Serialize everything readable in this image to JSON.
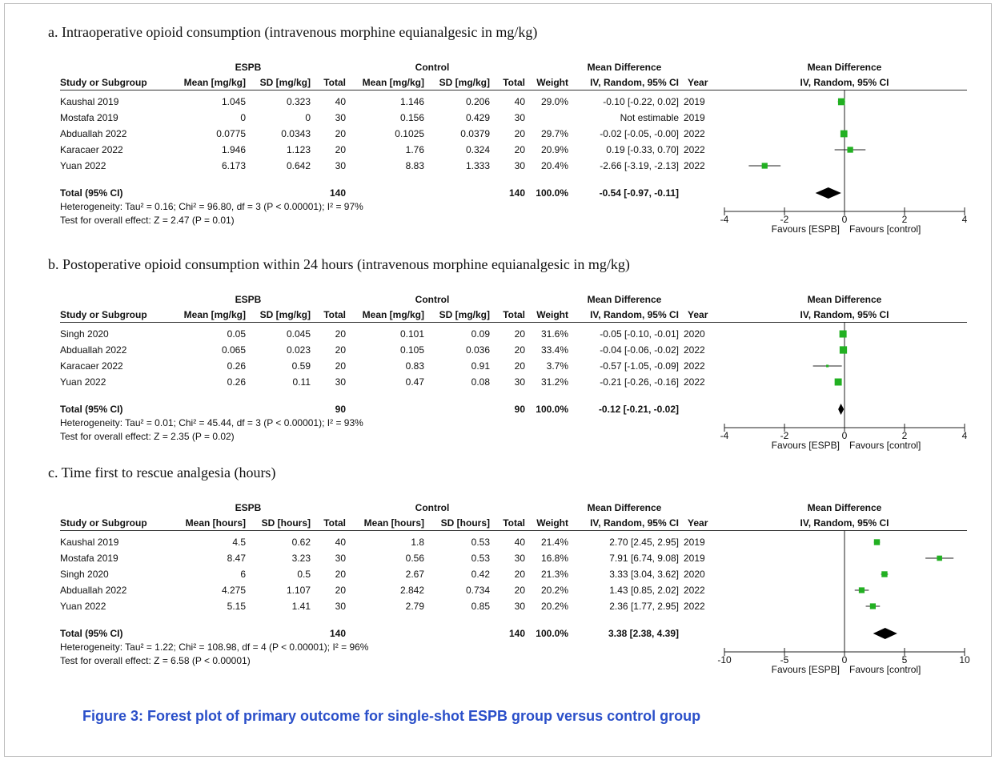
{
  "caption": "Figure 3: Forest plot of primary outcome for single-shot ESPB group versus control group",
  "labels": {
    "espb": "ESPB",
    "control": "Control",
    "md_header": "Mean Difference",
    "method": "IV, Random, 95% CI",
    "study": "Study or Subgroup",
    "total": "Total",
    "weight": "Weight",
    "year": "Year",
    "favours_left": "Favours [ESPB]",
    "favours_right": "Favours [control]"
  },
  "panels": [
    {
      "title": "a. Intraoperative opioid consumption (intravenous morphine equianalgesic in mg/kg)",
      "mean_label": "Mean [mg/kg]",
      "sd_label": "SD [mg/kg]",
      "studies": [
        {
          "study": "Kaushal 2019",
          "e_mean": "1.045",
          "e_sd": "0.323",
          "e_total": "40",
          "c_mean": "1.146",
          "c_sd": "0.206",
          "c_total": "40",
          "weight": "29.0%",
          "ci_text": "-0.10 [-0.22, 0.02]",
          "year": "2019"
        },
        {
          "study": "Mostafa 2019",
          "e_mean": "0",
          "e_sd": "0",
          "e_total": "30",
          "c_mean": "0.156",
          "c_sd": "0.429",
          "c_total": "30",
          "weight": "",
          "ci_text": "Not estimable",
          "year": "2019"
        },
        {
          "study": "Abduallah 2022",
          "e_mean": "0.0775",
          "e_sd": "0.0343",
          "e_total": "20",
          "c_mean": "0.1025",
          "c_sd": "0.0379",
          "c_total": "20",
          "weight": "29.7%",
          "ci_text": "-0.02 [-0.05, -0.00]",
          "year": "2022"
        },
        {
          "study": "Karacaer 2022",
          "e_mean": "1.946",
          "e_sd": "1.123",
          "e_total": "20",
          "c_mean": "1.76",
          "c_sd": "0.324",
          "c_total": "20",
          "weight": "20.9%",
          "ci_text": "0.19 [-0.33, 0.70]",
          "year": "2022"
        },
        {
          "study": "Yuan 2022",
          "e_mean": "6.173",
          "e_sd": "0.642",
          "e_total": "30",
          "c_mean": "8.83",
          "c_sd": "1.333",
          "c_total": "30",
          "weight": "20.4%",
          "ci_text": "-2.66 [-3.19, -2.13]",
          "year": "2022"
        }
      ],
      "total": {
        "label": "Total (95% CI)",
        "e_total": "140",
        "c_total": "140",
        "weight": "100.0%",
        "ci_text": "-0.54 [-0.97, -0.11]"
      },
      "heterogeneity": "Heterogeneity: Tau² = 0.16; Chi² = 96.80, df = 3 (P < 0.00001); I² = 97%",
      "overall": "Test for overall effect: Z = 2.47 (P = 0.01)"
    },
    {
      "title": "b. Postoperative opioid consumption within 24 hours (intravenous morphine equianalgesic in mg/kg)",
      "mean_label": "Mean [mg/kg]",
      "sd_label": "SD [mg/kg]",
      "studies": [
        {
          "study": "Singh 2020",
          "e_mean": "0.05",
          "e_sd": "0.045",
          "e_total": "20",
          "c_mean": "0.101",
          "c_sd": "0.09",
          "c_total": "20",
          "weight": "31.6%",
          "ci_text": "-0.05 [-0.10, -0.01]",
          "year": "2020"
        },
        {
          "study": "Abduallah 2022",
          "e_mean": "0.065",
          "e_sd": "0.023",
          "e_total": "20",
          "c_mean": "0.105",
          "c_sd": "0.036",
          "c_total": "20",
          "weight": "33.4%",
          "ci_text": "-0.04 [-0.06, -0.02]",
          "year": "2022"
        },
        {
          "study": "Karacaer 2022",
          "e_mean": "0.26",
          "e_sd": "0.59",
          "e_total": "20",
          "c_mean": "0.83",
          "c_sd": "0.91",
          "c_total": "20",
          "weight": "3.7%",
          "ci_text": "-0.57 [-1.05, -0.09]",
          "year": "2022"
        },
        {
          "study": "Yuan 2022",
          "e_mean": "0.26",
          "e_sd": "0.11",
          "e_total": "30",
          "c_mean": "0.47",
          "c_sd": "0.08",
          "c_total": "30",
          "weight": "31.2%",
          "ci_text": "-0.21 [-0.26, -0.16]",
          "year": "2022"
        }
      ],
      "total": {
        "label": "Total (95% CI)",
        "e_total": "90",
        "c_total": "90",
        "weight": "100.0%",
        "ci_text": "-0.12 [-0.21, -0.02]"
      },
      "heterogeneity": "Heterogeneity: Tau² = 0.01; Chi² = 45.44, df = 3 (P < 0.00001); I² = 93%",
      "overall": "Test for overall effect: Z = 2.35 (P = 0.02)"
    },
    {
      "title": "c. Time first to rescue analgesia (hours)",
      "mean_label": "Mean [hours]",
      "sd_label": "SD [hours]",
      "studies": [
        {
          "study": "Kaushal 2019",
          "e_mean": "4.5",
          "e_sd": "0.62",
          "e_total": "40",
          "c_mean": "1.8",
          "c_sd": "0.53",
          "c_total": "40",
          "weight": "21.4%",
          "ci_text": "2.70 [2.45, 2.95]",
          "year": "2019"
        },
        {
          "study": "Mostafa 2019",
          "e_mean": "8.47",
          "e_sd": "3.23",
          "e_total": "30",
          "c_mean": "0.56",
          "c_sd": "0.53",
          "c_total": "30",
          "weight": "16.8%",
          "ci_text": "7.91 [6.74, 9.08]",
          "year": "2019"
        },
        {
          "study": "Singh 2020",
          "e_mean": "6",
          "e_sd": "0.5",
          "e_total": "20",
          "c_mean": "2.67",
          "c_sd": "0.42",
          "c_total": "20",
          "weight": "21.3%",
          "ci_text": "3.33 [3.04, 3.62]",
          "year": "2020"
        },
        {
          "study": "Abduallah 2022",
          "e_mean": "4.275",
          "e_sd": "1.107",
          "e_total": "20",
          "c_mean": "2.842",
          "c_sd": "0.734",
          "c_total": "20",
          "weight": "20.2%",
          "ci_text": "1.43 [0.85, 2.02]",
          "year": "2022"
        },
        {
          "study": "Yuan 2022",
          "e_mean": "5.15",
          "e_sd": "1.41",
          "e_total": "30",
          "c_mean": "2.79",
          "c_sd": "0.85",
          "c_total": "30",
          "weight": "20.2%",
          "ci_text": "2.36 [1.77, 2.95]",
          "year": "2022"
        }
      ],
      "total": {
        "label": "Total (95% CI)",
        "e_total": "140",
        "c_total": "140",
        "weight": "100.0%",
        "ci_text": "3.38 [2.38, 4.39]"
      },
      "heterogeneity": "Heterogeneity: Tau² = 1.22; Chi² = 108.98, df = 4 (P < 0.00001); I² = 96%",
      "overall": "Test for overall effect: Z = 6.58 (P < 0.00001)"
    }
  ],
  "chart_data": [
    {
      "type": "forest",
      "xlim": [
        -4,
        4
      ],
      "ticks": [
        -4,
        -2,
        0,
        2,
        4
      ],
      "tick_labels": [
        "-4",
        "-2",
        "0",
        "2",
        "4"
      ],
      "colors": {
        "study": "#22b022",
        "summary": "#000000"
      },
      "studies": [
        {
          "name": "Kaushal 2019",
          "md": -0.1,
          "lo": -0.22,
          "hi": 0.02,
          "weight": 29.0
        },
        {
          "name": "Mostafa 2019",
          "md": null,
          "lo": null,
          "hi": null,
          "weight": null
        },
        {
          "name": "Abduallah 2022",
          "md": -0.02,
          "lo": -0.05,
          "hi": 0.0,
          "weight": 29.7
        },
        {
          "name": "Karacaer 2022",
          "md": 0.19,
          "lo": -0.33,
          "hi": 0.7,
          "weight": 20.9
        },
        {
          "name": "Yuan 2022",
          "md": -2.66,
          "lo": -3.19,
          "hi": -2.13,
          "weight": 20.4
        }
      ],
      "summary": {
        "md": -0.54,
        "lo": -0.97,
        "hi": -0.11
      }
    },
    {
      "type": "forest",
      "xlim": [
        -4,
        4
      ],
      "ticks": [
        -4,
        -2,
        0,
        2,
        4
      ],
      "tick_labels": [
        "-4",
        "-2",
        "0",
        "2",
        "4"
      ],
      "colors": {
        "study": "#22b022",
        "summary": "#000000"
      },
      "studies": [
        {
          "name": "Singh 2020",
          "md": -0.05,
          "lo": -0.1,
          "hi": -0.01,
          "weight": 31.6
        },
        {
          "name": "Abduallah 2022",
          "md": -0.04,
          "lo": -0.06,
          "hi": -0.02,
          "weight": 33.4
        },
        {
          "name": "Karacaer 2022",
          "md": -0.57,
          "lo": -1.05,
          "hi": -0.09,
          "weight": 3.7
        },
        {
          "name": "Yuan 2022",
          "md": -0.21,
          "lo": -0.26,
          "hi": -0.16,
          "weight": 31.2
        }
      ],
      "summary": {
        "md": -0.12,
        "lo": -0.21,
        "hi": -0.02
      }
    },
    {
      "type": "forest",
      "xlim": [
        -10,
        10
      ],
      "ticks": [
        -10,
        -5,
        0,
        5,
        10
      ],
      "tick_labels": [
        "-10",
        "-5",
        "0",
        "5",
        "10"
      ],
      "colors": {
        "study": "#22b022",
        "summary": "#000000"
      },
      "studies": [
        {
          "name": "Kaushal 2019",
          "md": 2.7,
          "lo": 2.45,
          "hi": 2.95,
          "weight": 21.4
        },
        {
          "name": "Mostafa 2019",
          "md": 7.91,
          "lo": 6.74,
          "hi": 9.08,
          "weight": 16.8
        },
        {
          "name": "Singh 2020",
          "md": 3.33,
          "lo": 3.04,
          "hi": 3.62,
          "weight": 21.3
        },
        {
          "name": "Abduallah 2022",
          "md": 1.43,
          "lo": 0.85,
          "hi": 2.02,
          "weight": 20.2
        },
        {
          "name": "Yuan 2022",
          "md": 2.36,
          "lo": 1.77,
          "hi": 2.95,
          "weight": 20.2
        }
      ],
      "summary": {
        "md": 3.38,
        "lo": 2.38,
        "hi": 4.39
      }
    }
  ]
}
